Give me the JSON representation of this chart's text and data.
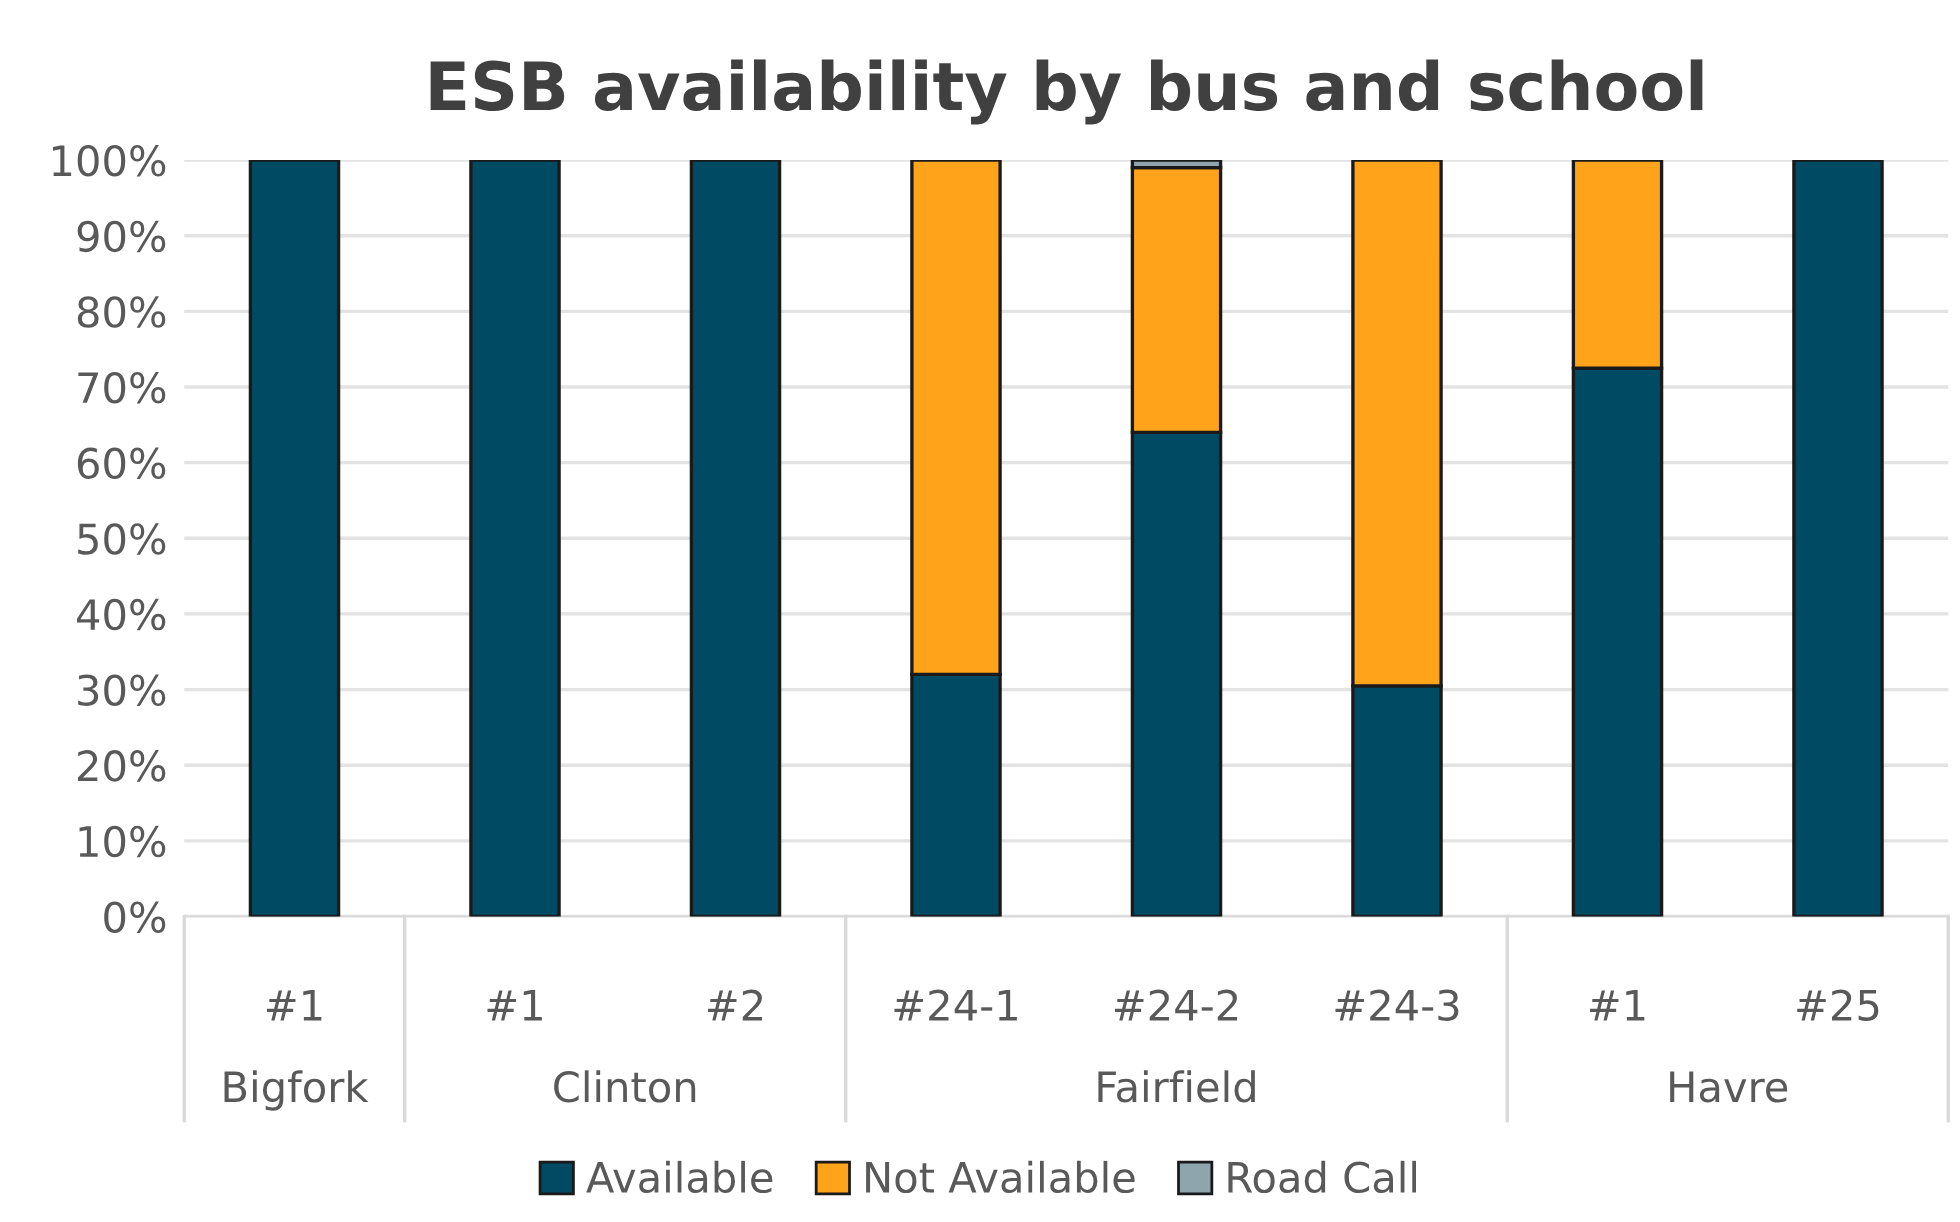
{
  "chart_data": {
    "type": "bar",
    "title": "ESB availability by bus and school",
    "categories": [
      "#1",
      "#1",
      "#2",
      "#24-1",
      "#24-2",
      "#24-3",
      "#1",
      "#25"
    ],
    "annotations": [
      "Bigfork",
      "Clinton",
      "Fairfield",
      "Havre"
    ],
    "stacked": true,
    "series": [
      {
        "name": "Available",
        "color": "#004b63",
        "values": [
          100,
          100,
          100,
          32,
          64,
          30.5,
          72.5,
          100
        ]
      },
      {
        "name": "Not Available",
        "color": "#ffa31a",
        "values": [
          null,
          null,
          null,
          68,
          35,
          69.5,
          27.5,
          null
        ]
      },
      {
        "name": "Road Call",
        "color": "#8fa5ad",
        "values": [
          null,
          null,
          null,
          null,
          1,
          null,
          null,
          null
        ]
      }
    ],
    "ylim": [
      0,
      100
    ],
    "yticks": [
      {
        "value": 0,
        "label": "0%"
      },
      {
        "value": 10,
        "label": "10%"
      },
      {
        "value": 20,
        "label": "20%"
      },
      {
        "value": 30,
        "label": "30%"
      },
      {
        "value": 40,
        "label": "40%"
      },
      {
        "value": 50,
        "label": "50%"
      },
      {
        "value": 60,
        "label": "60%"
      },
      {
        "value": 70,
        "label": "70%"
      },
      {
        "value": 80,
        "label": "80%"
      },
      {
        "value": 90,
        "label": "90%"
      },
      {
        "value": 100,
        "label": "100%"
      }
    ],
    "grid": "y",
    "legend": "bottom"
  }
}
